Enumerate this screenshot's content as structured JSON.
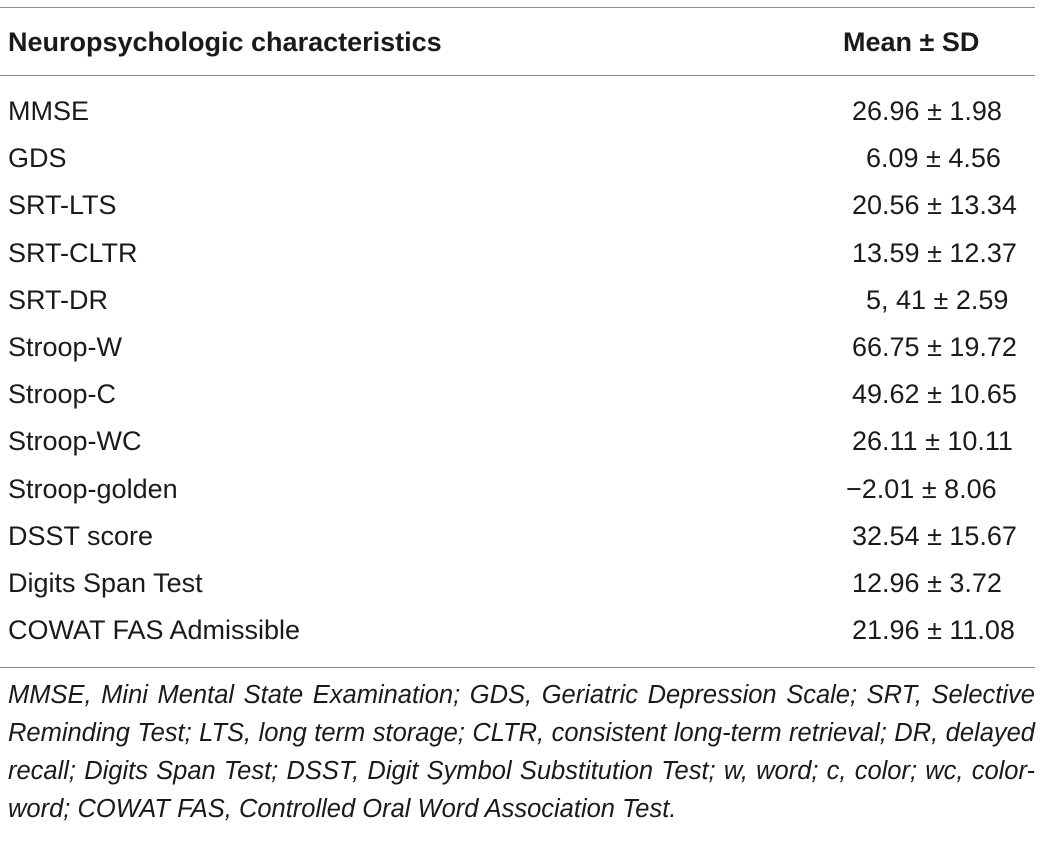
{
  "table": {
    "header": {
      "characteristic": "Neuropsychologic characteristics",
      "value": "Mean ± SD"
    },
    "rows": [
      {
        "name": "MMSE",
        "value": "26.96 ± 1.98"
      },
      {
        "name": "GDS",
        "value": "6.09 ± 4.56"
      },
      {
        "name": "SRT-LTS",
        "value": "20.56 ± 13.34"
      },
      {
        "name": "SRT-CLTR",
        "value": "13.59 ± 12.37"
      },
      {
        "name": "SRT-DR",
        "value": "5, 41 ± 2.59"
      },
      {
        "name": "Stroop-W",
        "value": "66.75 ± 19.72"
      },
      {
        "name": "Stroop-C",
        "value": "49.62 ± 10.65"
      },
      {
        "name": "Stroop-WC",
        "value": "26.11 ± 10.11"
      },
      {
        "name": "Stroop-golden",
        "value": "−2.01 ± 8.06"
      },
      {
        "name": "DSST score",
        "value": "32.54 ± 15.67"
      },
      {
        "name": "Digits Span Test",
        "value": "12.96 ± 3.72"
      },
      {
        "name": "COWAT FAS Admissible",
        "value": "21.96 ± 11.08"
      }
    ],
    "footnote": "MMSE, Mini Mental State Examination; GDS, Geriatric Depression Scale; SRT, Selective Reminding Test; LTS, long term storage; CLTR, consistent long-term retrieval; DR, delayed recall; Digits Span Test; DSST, Digit Symbol Substitution Test; w, word; c, color; wc, color-word; COWAT FAS, Controlled Oral Word Association Test."
  }
}
